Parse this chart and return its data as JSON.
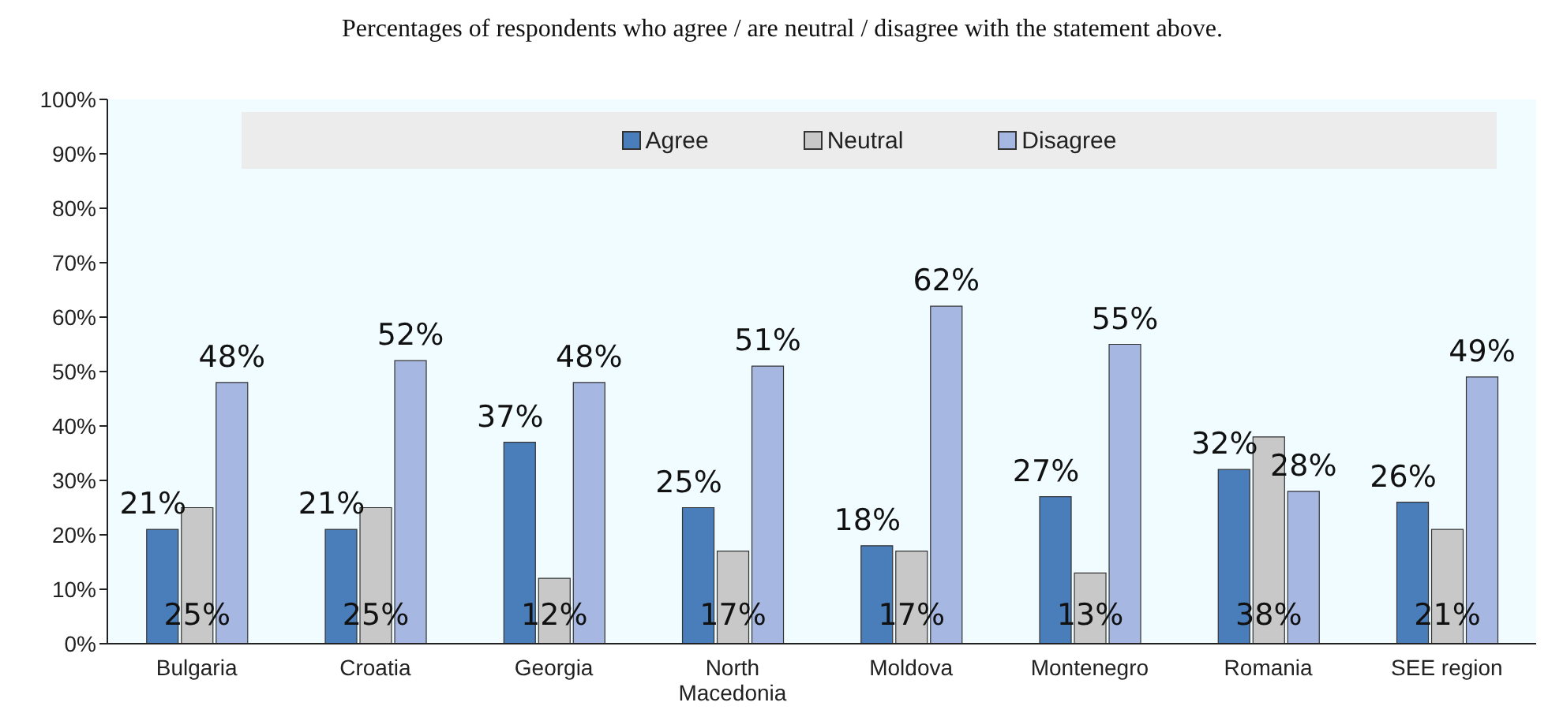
{
  "chart_data": {
    "type": "bar",
    "title": "Percentages of respondents who agree / are neutral / disagree with the statement above.",
    "categories": [
      "Bulgaria",
      "Croatia",
      "Georgia",
      "North Macedonia",
      "Moldova",
      "Montenegro",
      "Romania",
      "SEE region"
    ],
    "series": [
      {
        "name": "Agree",
        "color": "#4a7ebb",
        "values": [
          21,
          21,
          37,
          25,
          18,
          27,
          32,
          26
        ],
        "value_labels": [
          "21%",
          "21%",
          "37%",
          "25%",
          "18%",
          "27%",
          "32%",
          "26%"
        ]
      },
      {
        "name": "Neutral",
        "color": "#c8c8c8",
        "values": [
          25,
          25,
          12,
          17,
          17,
          13,
          38,
          21
        ],
        "value_labels": [
          "25%",
          "25%",
          "12%",
          "17%",
          "17%",
          "13%",
          "38%",
          "21%"
        ]
      },
      {
        "name": "Disagree",
        "color": "#a6b8e2",
        "values": [
          48,
          52,
          48,
          51,
          62,
          55,
          28,
          49
        ],
        "value_labels": [
          "48%",
          "52%",
          "48%",
          "51%",
          "62%",
          "55%",
          "28%",
          "49%"
        ]
      }
    ],
    "ylim": [
      0,
      100
    ],
    "yticks": [
      {
        "value": 0,
        "label": "0%"
      },
      {
        "value": 10,
        "label": "10%"
      },
      {
        "value": 20,
        "label": "20%"
      },
      {
        "value": 30,
        "label": "30%"
      },
      {
        "value": 40,
        "label": "40%"
      },
      {
        "value": 50,
        "label": "50%"
      },
      {
        "value": 60,
        "label": "60%"
      },
      {
        "value": 70,
        "label": "70%"
      },
      {
        "value": 80,
        "label": "80%"
      },
      {
        "value": 90,
        "label": "90%"
      },
      {
        "value": 100,
        "label": "100%"
      }
    ],
    "grid": false,
    "legend": "top"
  }
}
